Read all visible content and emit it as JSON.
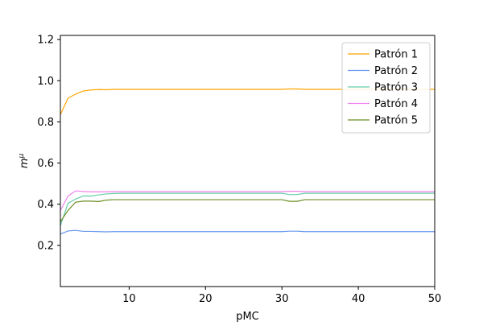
{
  "chart_data": {
    "type": "line",
    "title": "",
    "xlabel": "pMC",
    "ylabel_base": "m",
    "ylabel_sup": "μ",
    "xlim": [
      1,
      50
    ],
    "ylim": [
      0.0,
      1.22
    ],
    "xticks": [
      10,
      20,
      30,
      40,
      50
    ],
    "xtick_labels": [
      "10",
      "20",
      "30",
      "40",
      "50"
    ],
    "yticks": [
      0.2,
      0.4,
      0.6,
      0.8,
      1.0,
      1.2
    ],
    "ytick_labels": [
      "0.2",
      "0.4",
      "0.6",
      "0.8",
      "1.0",
      "1.2"
    ],
    "grid": false,
    "legend_position": "top-right",
    "x": [
      1,
      2,
      3,
      4,
      5,
      6,
      7,
      8,
      9,
      10,
      11,
      12,
      13,
      14,
      15,
      16,
      17,
      18,
      19,
      20,
      21,
      22,
      23,
      24,
      25,
      26,
      27,
      28,
      29,
      30,
      31,
      32,
      33,
      34,
      35,
      36,
      37,
      38,
      39,
      40,
      41,
      42,
      43,
      44,
      45,
      46,
      47,
      48,
      49,
      50
    ],
    "series": [
      {
        "name": "Patrón 1",
        "color": "#ffa500",
        "values": [
          0.835,
          0.915,
          0.935,
          0.95,
          0.955,
          0.957,
          0.956,
          0.958,
          0.958,
          0.958,
          0.958,
          0.958,
          0.958,
          0.958,
          0.958,
          0.958,
          0.958,
          0.958,
          0.958,
          0.958,
          0.958,
          0.958,
          0.958,
          0.958,
          0.958,
          0.958,
          0.958,
          0.958,
          0.958,
          0.958,
          0.96,
          0.96,
          0.958,
          0.958,
          0.958,
          0.958,
          0.958,
          0.958,
          0.958,
          0.958,
          0.958,
          0.958,
          0.958,
          0.958,
          0.958,
          0.958,
          0.958,
          0.958,
          0.958,
          0.958
        ]
      },
      {
        "name": "Patrón 2",
        "color": "#6495ed",
        "values": [
          0.255,
          0.27,
          0.273,
          0.268,
          0.268,
          0.267,
          0.266,
          0.267,
          0.267,
          0.267,
          0.267,
          0.267,
          0.267,
          0.267,
          0.267,
          0.267,
          0.267,
          0.267,
          0.267,
          0.267,
          0.267,
          0.267,
          0.267,
          0.267,
          0.267,
          0.267,
          0.267,
          0.267,
          0.267,
          0.267,
          0.269,
          0.269,
          0.267,
          0.267,
          0.267,
          0.267,
          0.267,
          0.267,
          0.267,
          0.267,
          0.267,
          0.267,
          0.267,
          0.267,
          0.267,
          0.267,
          0.267,
          0.267,
          0.267,
          0.267
        ]
      },
      {
        "name": "Patrón 3",
        "color": "#66cdaa",
        "values": [
          0.295,
          0.405,
          0.425,
          0.44,
          0.44,
          0.445,
          0.45,
          0.452,
          0.453,
          0.453,
          0.453,
          0.453,
          0.453,
          0.453,
          0.453,
          0.453,
          0.453,
          0.453,
          0.453,
          0.453,
          0.453,
          0.453,
          0.453,
          0.453,
          0.453,
          0.453,
          0.453,
          0.453,
          0.453,
          0.453,
          0.447,
          0.447,
          0.453,
          0.453,
          0.453,
          0.453,
          0.453,
          0.453,
          0.453,
          0.453,
          0.453,
          0.453,
          0.453,
          0.453,
          0.453,
          0.453,
          0.453,
          0.453,
          0.453,
          0.453
        ]
      },
      {
        "name": "Patrón 4",
        "color": "#ee82ee",
        "values": [
          0.37,
          0.44,
          0.465,
          0.462,
          0.46,
          0.46,
          0.46,
          0.461,
          0.461,
          0.461,
          0.461,
          0.461,
          0.461,
          0.461,
          0.461,
          0.461,
          0.461,
          0.461,
          0.461,
          0.461,
          0.461,
          0.461,
          0.461,
          0.461,
          0.461,
          0.461,
          0.461,
          0.461,
          0.461,
          0.461,
          0.463,
          0.463,
          0.461,
          0.461,
          0.461,
          0.461,
          0.461,
          0.461,
          0.461,
          0.461,
          0.461,
          0.461,
          0.461,
          0.461,
          0.461,
          0.461,
          0.461,
          0.461,
          0.461,
          0.461
        ]
      },
      {
        "name": "Patrón 5",
        "color": "#6b8e23",
        "values": [
          0.315,
          0.37,
          0.41,
          0.415,
          0.415,
          0.413,
          0.42,
          0.422,
          0.422,
          0.422,
          0.422,
          0.422,
          0.422,
          0.422,
          0.422,
          0.422,
          0.422,
          0.422,
          0.422,
          0.422,
          0.422,
          0.422,
          0.422,
          0.422,
          0.422,
          0.422,
          0.422,
          0.422,
          0.422,
          0.422,
          0.414,
          0.414,
          0.422,
          0.422,
          0.422,
          0.422,
          0.422,
          0.422,
          0.422,
          0.422,
          0.422,
          0.422,
          0.422,
          0.422,
          0.422,
          0.422,
          0.422,
          0.422,
          0.422,
          0.422
        ]
      }
    ]
  }
}
